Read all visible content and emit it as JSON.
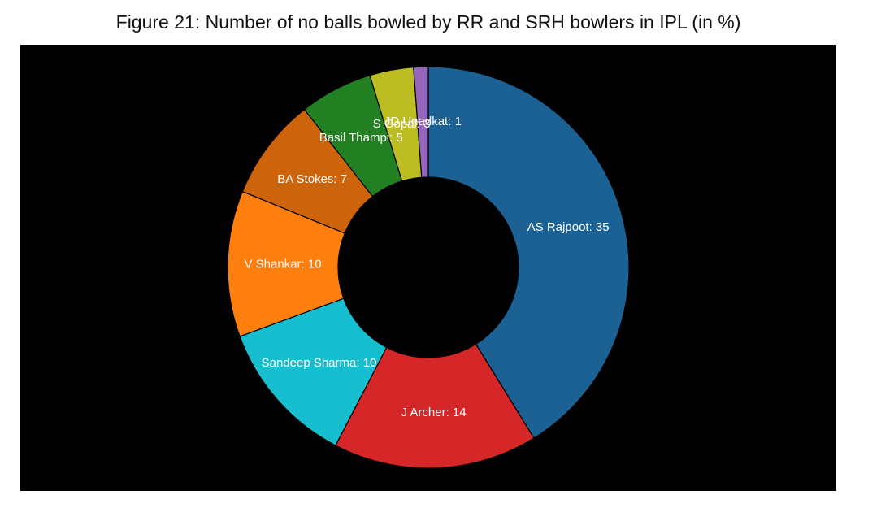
{
  "chart_data": {
    "type": "pie",
    "title": "Figure 21: Number of no balls bowled by RR and SRH bowlers in IPL (in %)",
    "donut": true,
    "slices": [
      {
        "label": "AS Rajpoot",
        "value": 35,
        "display": "AS Rajpoot: 35",
        "color": "#1c6193"
      },
      {
        "label": "J Archer",
        "value": 14,
        "display": "J Archer: 14",
        "color": "#d62728"
      },
      {
        "label": "Sandeep Sharma",
        "value": 10,
        "display": "Sandeep Sharma: 10",
        "color": "#17becf"
      },
      {
        "label": "V Shankar",
        "value": 10,
        "display": "V Shankar: 10",
        "color": "#ff7f0e"
      },
      {
        "label": "BA Stokes",
        "value": 7,
        "display": "BA Stokes: 7",
        "color": "#cd640c"
      },
      {
        "label": "Basil Thampi",
        "value": 5,
        "display": "Basil Thampi: 5",
        "color": "#228022"
      },
      {
        "label": "S Gopal",
        "value": 3,
        "display": "S Gopal: 3",
        "color": "#bcbd22"
      },
      {
        "label": "JD Unadkat",
        "value": 1,
        "display": "JD Unadkat: 1",
        "color": "#9467bd"
      }
    ],
    "background": "#000000"
  }
}
